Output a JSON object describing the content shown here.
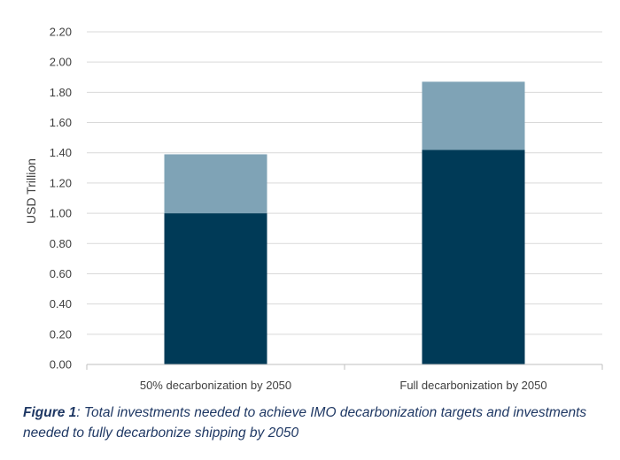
{
  "chart_data": {
    "type": "bar",
    "stacked": true,
    "categories": [
      "50% decarbonization by 2050",
      "Full decarbonization by 2050"
    ],
    "series": [
      {
        "values": [
          1.0,
          1.42
        ],
        "color": "#003a57"
      },
      {
        "values": [
          0.39,
          0.45
        ],
        "color": "#7fa3b6"
      }
    ],
    "ylabel": "USD Trillion",
    "ylim": [
      0,
      2.2
    ],
    "yticks": [
      "0.00",
      "0.20",
      "0.40",
      "0.60",
      "0.80",
      "1.00",
      "1.20",
      "1.40",
      "1.60",
      "1.80",
      "2.00",
      "2.20"
    ],
    "grid": true,
    "legend": false
  },
  "caption": {
    "label": "Figure 1",
    "text": ": Total investments needed to achieve IMO decarbonization targets and investments needed to fully decarbonize shipping by 2050"
  },
  "colors": {
    "grid": "#d9d9d9",
    "axis": "#bfbfbf",
    "text": "#404040",
    "caption": "#1f3864"
  }
}
